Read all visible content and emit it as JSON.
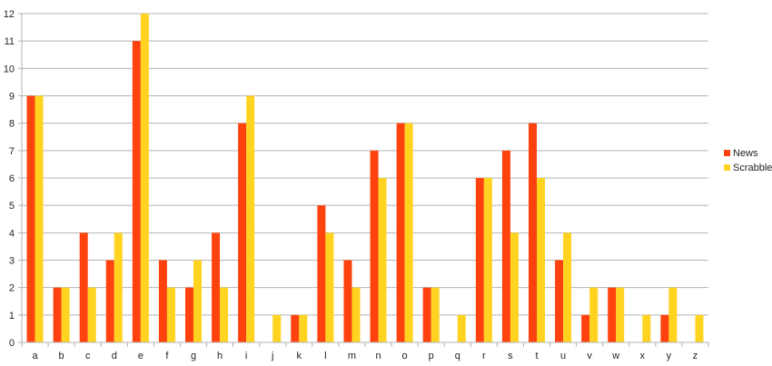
{
  "chart_data": {
    "type": "bar",
    "title": "",
    "xlabel": "",
    "ylabel": "",
    "ylim": [
      0,
      12
    ],
    "yticks": [
      0,
      1,
      2,
      3,
      4,
      5,
      6,
      7,
      8,
      9,
      10,
      11,
      12
    ],
    "grid": true,
    "legend_position": "right",
    "categories": [
      "a",
      "b",
      "c",
      "d",
      "e",
      "f",
      "g",
      "h",
      "i",
      "j",
      "k",
      "l",
      "m",
      "n",
      "o",
      "p",
      "q",
      "r",
      "s",
      "t",
      "u",
      "v",
      "w",
      "x",
      "y",
      "z"
    ],
    "series": [
      {
        "name": "News",
        "color": "#ff420e",
        "values": [
          9,
          2,
          4,
          3,
          11,
          3,
          2,
          4,
          8,
          0,
          1,
          5,
          3,
          7,
          8,
          2,
          0,
          6,
          7,
          8,
          3,
          1,
          2,
          0,
          1,
          0
        ]
      },
      {
        "name": "Scrabble",
        "color": "#ffd320",
        "values": [
          9,
          2,
          2,
          4,
          12,
          2,
          3,
          2,
          9,
          1,
          1,
          4,
          2,
          6,
          8,
          2,
          1,
          6,
          4,
          6,
          4,
          2,
          2,
          1,
          2,
          1
        ]
      }
    ]
  }
}
